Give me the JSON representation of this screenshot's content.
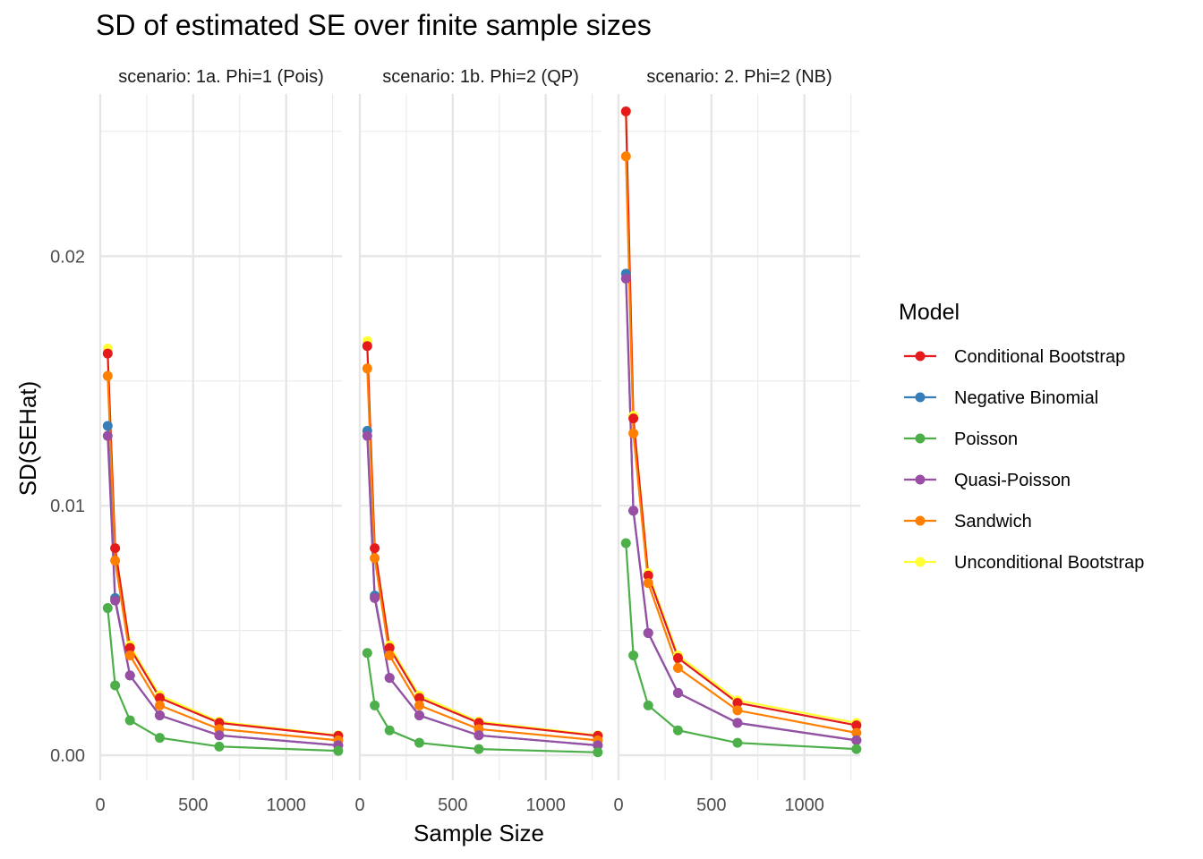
{
  "chart_data": {
    "type": "line",
    "title": "SD of estimated SE over finite sample sizes",
    "xlabel": "Sample Size",
    "ylabel": "SD(SEHat)",
    "xlim": [
      0,
      1300
    ],
    "ylim": [
      -0.001,
      0.0265
    ],
    "x_ticks": [
      0,
      500,
      1000
    ],
    "x_tick_labels": [
      "0",
      "500",
      "1000"
    ],
    "y_ticks": [
      0,
      0.01,
      0.02
    ],
    "y_tick_labels": [
      "0.00",
      "0.01",
      "0.02"
    ],
    "grid": true,
    "legend": {
      "title": "Model",
      "position": "right",
      "entries": [
        "Conditional Bootstrap",
        "Negative Binomial",
        "Poisson",
        "Quasi-Poisson",
        "Sandwich",
        "Unconditional Bootstrap"
      ]
    },
    "colors": {
      "Conditional Bootstrap": "#e41a1c",
      "Negative Binomial": "#377eb8",
      "Poisson": "#4daf4a",
      "Quasi-Poisson": "#984ea3",
      "Sandwich": "#ff7f00",
      "Unconditional Bootstrap": "#ffff33"
    },
    "x": [
      40,
      80,
      160,
      320,
      640,
      1280
    ],
    "facets": [
      {
        "label": "scenario: 1a. Phi=1 (Pois)",
        "series": [
          {
            "name": "Unconditional Bootstrap",
            "values": [
              0.0163,
              0.0083,
              0.0044,
              0.0024,
              0.00135,
              0.0008
            ]
          },
          {
            "name": "Conditional Bootstrap",
            "values": [
              0.0161,
              0.0083,
              0.0043,
              0.0023,
              0.0013,
              0.00078
            ]
          },
          {
            "name": "Sandwich",
            "values": [
              0.0152,
              0.0078,
              0.004,
              0.002,
              0.00105,
              0.0006
            ]
          },
          {
            "name": "Negative Binomial",
            "values": [
              0.0132,
              0.0063,
              0.0032,
              0.0016,
              0.0008,
              0.0004
            ]
          },
          {
            "name": "Quasi-Poisson",
            "values": [
              0.0128,
              0.0062,
              0.0032,
              0.0016,
              0.0008,
              0.0004
            ]
          },
          {
            "name": "Poisson",
            "values": [
              0.0059,
              0.0028,
              0.0014,
              0.0007,
              0.00035,
              0.00018
            ]
          }
        ]
      },
      {
        "label": "scenario: 1b. Phi=2 (QP)",
        "series": [
          {
            "name": "Unconditional Bootstrap",
            "values": [
              0.0166,
              0.0083,
              0.0044,
              0.0024,
              0.00135,
              0.0008
            ]
          },
          {
            "name": "Conditional Bootstrap",
            "values": [
              0.0164,
              0.0083,
              0.0043,
              0.0023,
              0.0013,
              0.00078
            ]
          },
          {
            "name": "Sandwich",
            "values": [
              0.0155,
              0.0079,
              0.004,
              0.002,
              0.00105,
              0.0006
            ]
          },
          {
            "name": "Negative Binomial",
            "values": [
              0.013,
              0.0064,
              0.0031,
              0.0016,
              0.0008,
              0.0004
            ]
          },
          {
            "name": "Quasi-Poisson",
            "values": [
              0.0128,
              0.0063,
              0.0031,
              0.0016,
              0.0008,
              0.0004
            ]
          },
          {
            "name": "Poisson",
            "values": [
              0.0041,
              0.002,
              0.001,
              0.0005,
              0.00025,
              0.00012
            ]
          }
        ]
      },
      {
        "label": "scenario: 2. Phi=2 (NB)",
        "series": [
          {
            "name": "Unconditional Bootstrap",
            "values": [
              0.0258,
              0.0136,
              0.0073,
              0.004,
              0.0022,
              0.0013
            ]
          },
          {
            "name": "Conditional Bootstrap",
            "values": [
              0.0258,
              0.0135,
              0.0072,
              0.0039,
              0.0021,
              0.0012
            ]
          },
          {
            "name": "Sandwich",
            "values": [
              0.024,
              0.0129,
              0.0069,
              0.0035,
              0.0018,
              0.0009
            ]
          },
          {
            "name": "Negative Binomial",
            "values": [
              0.0193,
              0.0098,
              0.0049,
              0.0025,
              0.0013,
              0.0006
            ]
          },
          {
            "name": "Quasi-Poisson",
            "values": [
              0.0191,
              0.0098,
              0.0049,
              0.0025,
              0.0013,
              0.0006
            ]
          },
          {
            "name": "Poisson",
            "values": [
              0.0085,
              0.004,
              0.002,
              0.001,
              0.0005,
              0.00025
            ]
          }
        ]
      }
    ]
  }
}
